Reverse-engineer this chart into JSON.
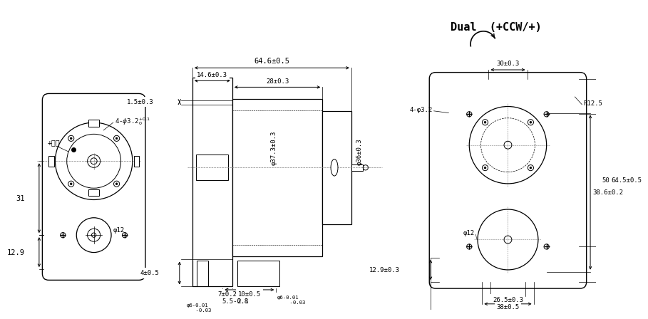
{
  "bg_color": "#ffffff",
  "line_color": "#000000",
  "font_size_small": 6.5,
  "font_size_medium": 7.5,
  "font_size_large": 11,
  "title_text": "Dual  (+CCW/+)",
  "labels": {
    "pos_electrode": "+正极",
    "four_holes_left": "4-φ3.2",
    "four_holes_right": "4-φ3.2",
    "dim_31": "31",
    "dim_12_9_left": "12.9",
    "dim_12_9_right": "12.9±0.3",
    "dim_phi12_left": "φ12",
    "dim_phi12_right": "φ12",
    "dim_64_6": "64.6±0.5",
    "dim_14_6": "14.6±0.3",
    "dim_28": "28±0.3",
    "dim_phi37": "φ37.3±0.3",
    "dim_phi36": "φ36±0.3",
    "dim_1_5": "1.5±0.3",
    "dim_4": "4±0.5",
    "dim_7": "7±0.2",
    "dim_10": "10±0.5",
    "dim_2_8": "2.8",
    "dim_5_5": "5.5",
    "dim_phi6_left": "φ6",
    "dim_phi6_right": "φ6",
    "dim_30": "30±0.3",
    "dim_R12_5": "R12.5",
    "dim_38_6": "38.6±0.2",
    "dim_50": "50±0.3",
    "dim_64_5": "64.5±0.5",
    "dim_26_5": "26.5±0.3",
    "dim_38": "38±0.5"
  }
}
